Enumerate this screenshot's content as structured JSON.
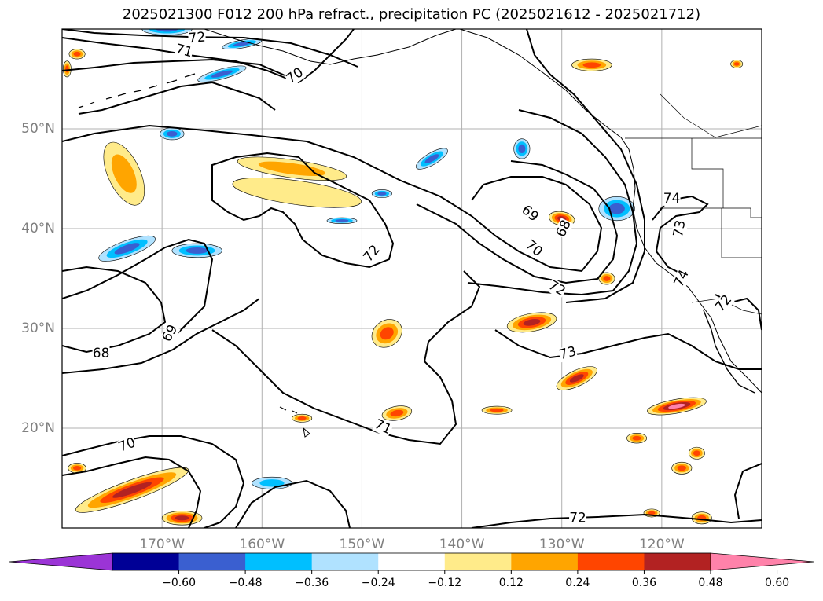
{
  "title": "2025021300 F012 200 hPa refract., precipitation PC (2025021612 - 2025021712)",
  "chart_data": {
    "type": "map",
    "map": {
      "projection": "PlateCarree",
      "lon_range": [
        -180,
        -110
      ],
      "lat_range": [
        10,
        60
      ],
      "grid": true
    },
    "lat_ticks": [
      {
        "value": 50,
        "label": "50°N"
      },
      {
        "value": 40,
        "label": "40°N"
      },
      {
        "value": 30,
        "label": "30°N"
      },
      {
        "value": 20,
        "label": "20°N"
      }
    ],
    "lon_ticks": [
      {
        "value": -170,
        "label": "170°W"
      },
      {
        "value": -160,
        "label": "160°W"
      },
      {
        "value": -150,
        "label": "150°W"
      },
      {
        "value": -140,
        "label": "140°W"
      },
      {
        "value": -130,
        "label": "130°W"
      },
      {
        "value": -120,
        "label": "120°W"
      }
    ],
    "contour_labels": [
      {
        "text": "72",
        "lon": -166.5,
        "lat": 59.1,
        "angle": -5
      },
      {
        "text": "71",
        "lon": -167.8,
        "lat": 57.8,
        "angle": 15
      },
      {
        "text": "70",
        "lon": -156.7,
        "lat": 55.3,
        "angle": -35
      },
      {
        "text": "72",
        "lon": -149.0,
        "lat": 37.5,
        "angle": -50
      },
      {
        "text": "69",
        "lon": -133.2,
        "lat": 41.5,
        "angle": 40
      },
      {
        "text": "68",
        "lon": -129.8,
        "lat": 40.0,
        "angle": -65
      },
      {
        "text": "70",
        "lon": -132.8,
        "lat": 38.0,
        "angle": 40
      },
      {
        "text": "72",
        "lon": -130.5,
        "lat": 34.0,
        "angle": 30
      },
      {
        "text": "74",
        "lon": -119.0,
        "lat": 43.0,
        "angle": 0
      },
      {
        "text": "73",
        "lon": -118.2,
        "lat": 40.0,
        "angle": -80
      },
      {
        "text": "74",
        "lon": -118.0,
        "lat": 35.0,
        "angle": -65
      },
      {
        "text": "72",
        "lon": -113.8,
        "lat": 32.5,
        "angle": -50
      },
      {
        "text": "69",
        "lon": -169.2,
        "lat": 29.5,
        "angle": -60
      },
      {
        "text": "68",
        "lon": -176.1,
        "lat": 27.5,
        "angle": 0
      },
      {
        "text": "73",
        "lon": -129.4,
        "lat": 27.5,
        "angle": -15
      },
      {
        "text": "71",
        "lon": -147.9,
        "lat": 20.1,
        "angle": 25
      },
      {
        "text": "70",
        "lon": -173.5,
        "lat": 18.3,
        "angle": -20
      },
      {
        "text": "72",
        "lon": -128.4,
        "lat": 11.0,
        "angle": 0
      }
    ],
    "colorbar": {
      "extend": "both",
      "boundaries": [
        -0.72,
        -0.6,
        -0.48,
        -0.36,
        -0.24,
        -0.12,
        0.12,
        0.24,
        0.36,
        0.48,
        0.6,
        0.72
      ],
      "tick_values": [
        -0.6,
        -0.48,
        -0.36,
        -0.24,
        -0.12,
        0.12,
        0.24,
        0.36,
        0.48,
        0.6
      ],
      "tick_labels": [
        "−0.60",
        "−0.48",
        "−0.36",
        "−0.24",
        "−0.12",
        "0.12",
        "0.24",
        "0.36",
        "0.48",
        "0.60"
      ],
      "colors": [
        "#9b34d6",
        "#000096",
        "#3a5fd0",
        "#00bfff",
        "#b0e2ff",
        "#ffffff",
        "#ffeb8a",
        "#ffa500",
        "#ff4500",
        "#b22222",
        "#ff82aa"
      ]
    },
    "precip_features": [
      {
        "lon": -173.8,
        "lat": 45.5,
        "rx": 1.6,
        "ry": 3.4,
        "level": 2,
        "angle": -25
      },
      {
        "lon": -157.0,
        "lat": 46.0,
        "rx": 5.5,
        "ry": 0.9,
        "level": 2,
        "angle": 8
      },
      {
        "lon": -156.5,
        "lat": 43.6,
        "rx": 6.5,
        "ry": 1.2,
        "level": 1,
        "angle": 8
      },
      {
        "lon": -148.0,
        "lat": 43.5,
        "rx": 1.0,
        "ry": 0.4,
        "level": -3,
        "angle": 0
      },
      {
        "lon": -173.5,
        "lat": 38.0,
        "rx": 3.0,
        "ry": 0.8,
        "level": -3,
        "angle": -20
      },
      {
        "lon": -166.5,
        "lat": 37.8,
        "rx": 2.5,
        "ry": 0.7,
        "level": -3,
        "angle": 0
      },
      {
        "lon": -169.0,
        "lat": 49.5,
        "rx": 1.2,
        "ry": 0.6,
        "level": -3,
        "angle": 0
      },
      {
        "lon": -162.0,
        "lat": 58.5,
        "rx": 2.0,
        "ry": 0.4,
        "level": -3,
        "angle": -10
      },
      {
        "lon": -164.0,
        "lat": 55.5,
        "rx": 2.5,
        "ry": 0.5,
        "level": -3,
        "angle": -15
      },
      {
        "lon": -124.5,
        "lat": 42.0,
        "rx": 1.8,
        "ry": 1.2,
        "level": -3,
        "angle": 0
      },
      {
        "lon": -134.0,
        "lat": 48.0,
        "rx": 0.8,
        "ry": 1.0,
        "level": -3,
        "angle": 0
      },
      {
        "lon": -143.0,
        "lat": 47.0,
        "rx": 1.8,
        "ry": 0.6,
        "level": -3,
        "angle": -30
      },
      {
        "lon": -152.0,
        "lat": 40.8,
        "rx": 1.5,
        "ry": 0.3,
        "level": -3,
        "angle": 0
      },
      {
        "lon": -159.0,
        "lat": 14.5,
        "rx": 2.0,
        "ry": 0.6,
        "level": -2,
        "angle": 0
      },
      {
        "lon": -169.5,
        "lat": 60.0,
        "rx": 2.5,
        "ry": 0.6,
        "level": -3,
        "angle": 0
      },
      {
        "lon": -130.0,
        "lat": 41.0,
        "rx": 1.3,
        "ry": 0.7,
        "level": 4,
        "angle": 10
      },
      {
        "lon": -147.5,
        "lat": 29.5,
        "rx": 1.6,
        "ry": 1.3,
        "level": 3,
        "angle": -35
      },
      {
        "lon": -133.0,
        "lat": 30.6,
        "rx": 2.5,
        "ry": 0.9,
        "level": 4,
        "angle": -10
      },
      {
        "lon": -128.5,
        "lat": 25.0,
        "rx": 2.2,
        "ry": 0.8,
        "level": 4,
        "angle": -25
      },
      {
        "lon": -118.5,
        "lat": 22.2,
        "rx": 3.0,
        "ry": 0.7,
        "level": 5,
        "angle": -10
      },
      {
        "lon": -173.0,
        "lat": 13.8,
        "rx": 6.0,
        "ry": 1.0,
        "level": 4,
        "angle": -20
      },
      {
        "lon": -168.0,
        "lat": 11.0,
        "rx": 2.0,
        "ry": 0.7,
        "level": 4,
        "angle": 0
      },
      {
        "lon": -146.5,
        "lat": 21.5,
        "rx": 1.5,
        "ry": 0.7,
        "level": 3,
        "angle": -10
      },
      {
        "lon": -127.0,
        "lat": 56.4,
        "rx": 2.0,
        "ry": 0.6,
        "level": 3,
        "angle": 0
      },
      {
        "lon": -136.5,
        "lat": 21.8,
        "rx": 1.5,
        "ry": 0.4,
        "level": 3,
        "angle": 0
      },
      {
        "lon": -122.5,
        "lat": 19.0,
        "rx": 1.0,
        "ry": 0.5,
        "level": 3,
        "angle": 0
      },
      {
        "lon": -116.5,
        "lat": 17.5,
        "rx": 0.8,
        "ry": 0.6,
        "level": 3,
        "angle": 0
      },
      {
        "lon": -118.0,
        "lat": 16.0,
        "rx": 1.0,
        "ry": 0.6,
        "level": 3,
        "angle": 0
      },
      {
        "lon": -178.5,
        "lat": 57.5,
        "rx": 0.8,
        "ry": 0.5,
        "level": 3,
        "angle": 0
      },
      {
        "lon": -179.5,
        "lat": 56.0,
        "rx": 0.4,
        "ry": 0.8,
        "level": 3,
        "angle": 0
      },
      {
        "lon": -178.5,
        "lat": 16.0,
        "rx": 0.9,
        "ry": 0.5,
        "level": 3,
        "angle": 0
      },
      {
        "lon": -156.0,
        "lat": 21.0,
        "rx": 1.0,
        "ry": 0.4,
        "level": 3,
        "angle": 0
      },
      {
        "lon": -116.0,
        "lat": 11.0,
        "rx": 1.0,
        "ry": 0.6,
        "level": 3,
        "angle": 0
      },
      {
        "lon": -121.0,
        "lat": 11.5,
        "rx": 0.8,
        "ry": 0.4,
        "level": 3,
        "angle": 0
      },
      {
        "lon": -112.5,
        "lat": 56.5,
        "rx": 0.6,
        "ry": 0.4,
        "level": 3,
        "angle": 0
      },
      {
        "lon": -125.5,
        "lat": 35.0,
        "rx": 0.8,
        "ry": 0.6,
        "level": 3,
        "angle": 0
      }
    ]
  }
}
